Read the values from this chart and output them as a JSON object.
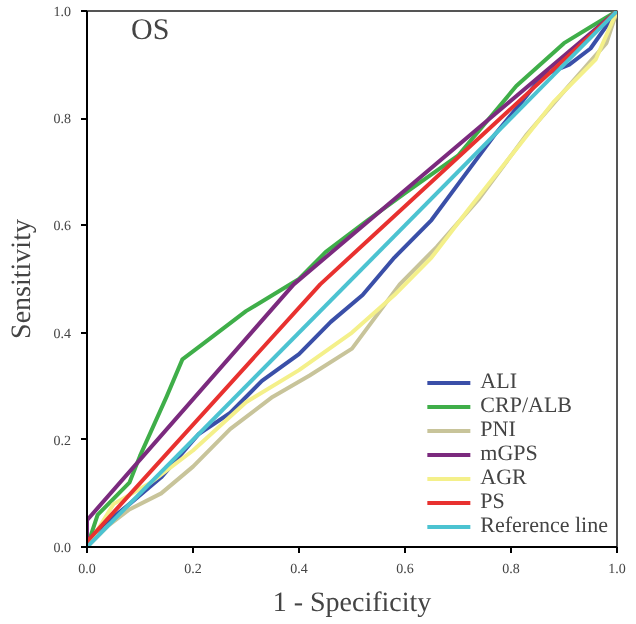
{
  "chart_data": {
    "type": "line",
    "title": "OS",
    "xlabel": "1 - Specificity",
    "ylabel": "Sensitivity",
    "xlim": [
      0,
      1
    ],
    "ylim": [
      0,
      1
    ],
    "xticks": [
      {
        "value": 0,
        "label": "0.0"
      },
      {
        "value": 0.2,
        "label": "0.2"
      },
      {
        "value": 0.4,
        "label": "0.4"
      },
      {
        "value": 0.6,
        "label": "0.6"
      },
      {
        "value": 0.8,
        "label": "0.8"
      },
      {
        "value": 1,
        "label": "1.0"
      }
    ],
    "yticks": [
      {
        "value": 0,
        "label": "0.0"
      },
      {
        "value": 0.2,
        "label": "0.2"
      },
      {
        "value": 0.4,
        "label": "0.4"
      },
      {
        "value": 0.6,
        "label": "0.6"
      },
      {
        "value": 0.8,
        "label": "0.8"
      },
      {
        "value": 1,
        "label": "1.0"
      }
    ],
    "grid": false,
    "legend": "bottom right",
    "marker": "none",
    "line_style": "solid",
    "series": [
      {
        "name": "ALI",
        "color": "#3a4fa8",
        "x": [
          0,
          0.03,
          0.08,
          0.14,
          0.21,
          0.27,
          0.33,
          0.4,
          0.46,
          0.52,
          0.58,
          0.65,
          0.71,
          0.77,
          0.82,
          0.86,
          0.91,
          0.95,
          1
        ],
        "values": [
          0,
          0.04,
          0.08,
          0.13,
          0.21,
          0.25,
          0.31,
          0.36,
          0.42,
          0.47,
          0.54,
          0.61,
          0.69,
          0.77,
          0.83,
          0.88,
          0.9,
          0.93,
          1
        ]
      },
      {
        "name": "CRP/ALB",
        "color": "#3fae49",
        "x": [
          0,
          0.02,
          0.08,
          0.1,
          0.15,
          0.18,
          0.22,
          0.3,
          0.4,
          0.45,
          0.53,
          0.6,
          0.7,
          0.81,
          0.9,
          0.95,
          1
        ],
        "values": [
          0,
          0.06,
          0.12,
          0.17,
          0.28,
          0.35,
          0.38,
          0.44,
          0.5,
          0.55,
          0.61,
          0.66,
          0.73,
          0.86,
          0.94,
          0.97,
          1
        ]
      },
      {
        "name": "PNI",
        "color": "#c8c49a",
        "x": [
          0,
          0.04,
          0.08,
          0.14,
          0.2,
          0.27,
          0.35,
          0.42,
          0.5,
          0.59,
          0.66,
          0.74,
          0.83,
          0.9,
          0.98,
          1
        ],
        "values": [
          0,
          0.04,
          0.07,
          0.1,
          0.15,
          0.22,
          0.28,
          0.32,
          0.37,
          0.49,
          0.56,
          0.65,
          0.77,
          0.85,
          0.94,
          1
        ]
      },
      {
        "name": "mGPS",
        "color": "#7b2a7e",
        "x": [
          0,
          0,
          0.39,
          1
        ],
        "values": [
          0,
          0.05,
          0.49,
          1
        ]
      },
      {
        "name": "AGR",
        "color": "#f4f08a",
        "x": [
          0,
          0.05,
          0.12,
          0.2,
          0.3,
          0.4,
          0.5,
          0.58,
          0.65,
          0.72,
          0.8,
          0.88,
          0.96,
          1
        ],
        "values": [
          0,
          0.08,
          0.12,
          0.18,
          0.27,
          0.33,
          0.4,
          0.47,
          0.54,
          0.63,
          0.73,
          0.83,
          0.91,
          1
        ]
      },
      {
        "name": "PS",
        "color": "#e8312f",
        "x": [
          0,
          0,
          0.44,
          1
        ],
        "values": [
          0,
          0.01,
          0.49,
          1
        ]
      },
      {
        "name": "Reference line",
        "color": "#4cc3d1",
        "x": [
          0,
          1
        ],
        "values": [
          0,
          1
        ]
      }
    ]
  }
}
